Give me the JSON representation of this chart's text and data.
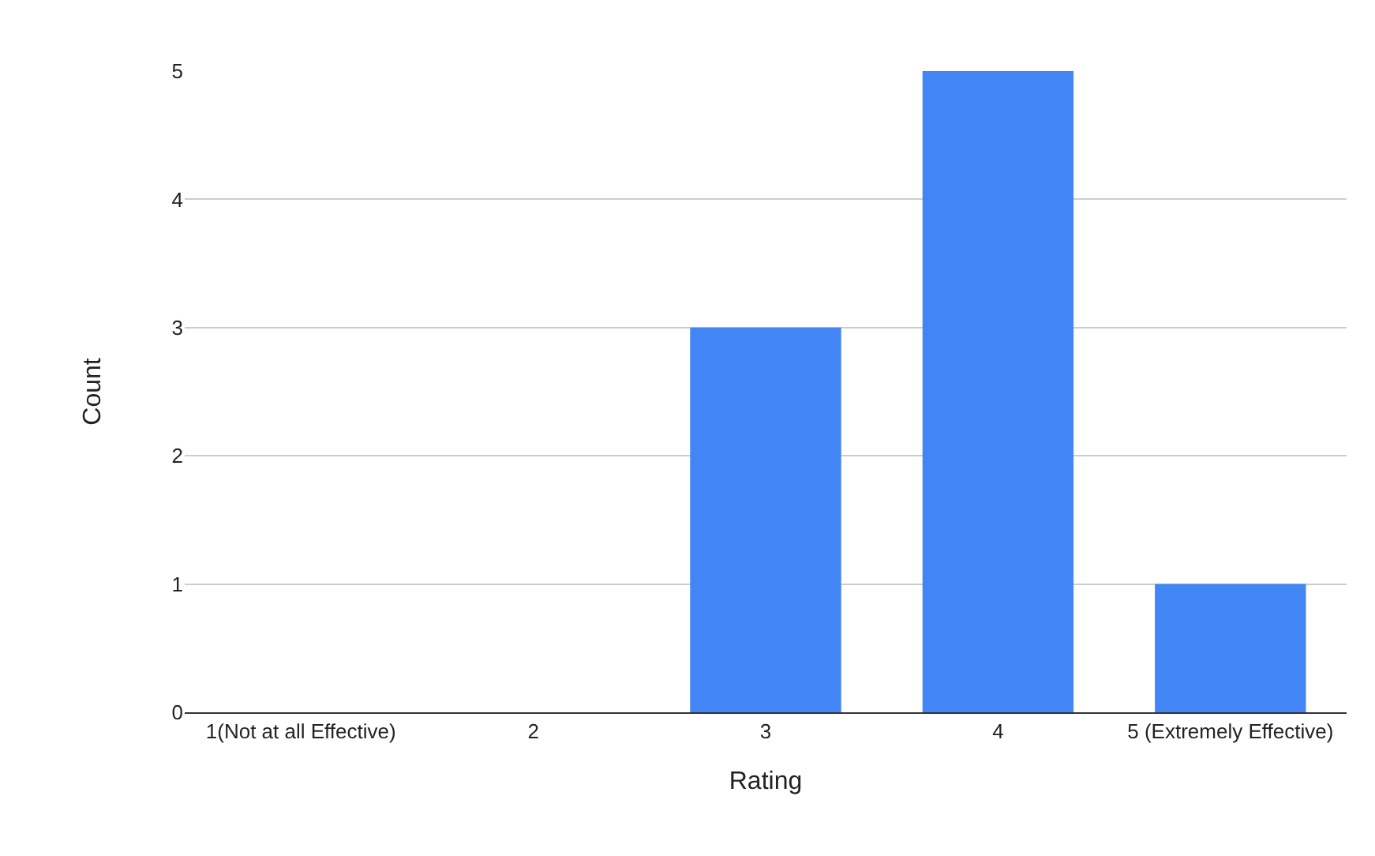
{
  "chart_data": {
    "type": "bar",
    "xlabel": "Rating",
    "ylabel": "Count",
    "categories": [
      "1(Not at all Effective)",
      "2",
      "3",
      "4",
      "5 (Extremely Effective)"
    ],
    "values": [
      0,
      0,
      3,
      5,
      1
    ],
    "color": "#4285f4",
    "ylim": [
      0,
      5
    ],
    "yticks": [
      0,
      1,
      2,
      3,
      4,
      5
    ],
    "grid": "y",
    "legend": false
  }
}
